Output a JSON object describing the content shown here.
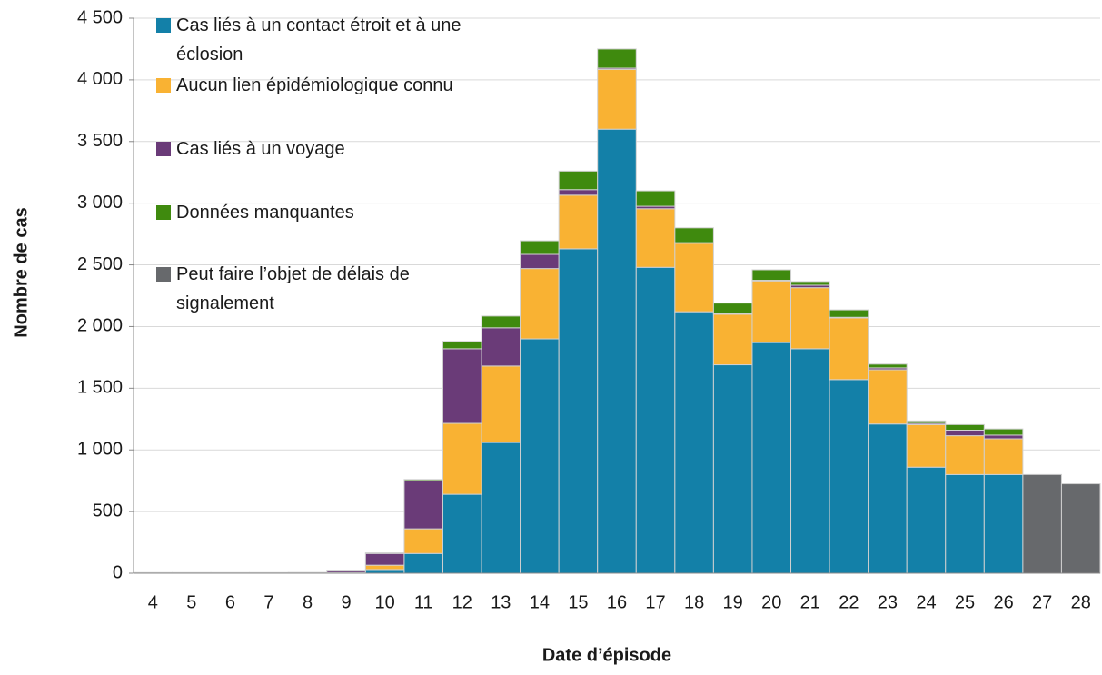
{
  "chart_data": {
    "type": "stacked_bar",
    "x_label": "Date d’épisode",
    "y_label": "Nombre de cas",
    "categories": [
      "4",
      "5",
      "6",
      "7",
      "8",
      "9",
      "10",
      "11",
      "12",
      "13",
      "14",
      "15",
      "16",
      "17",
      "18",
      "19",
      "20",
      "21",
      "22",
      "23",
      "24",
      "25",
      "26",
      "27",
      "28"
    ],
    "series": [
      {
        "name": "Cas liés à un contact étroit et à une éclosion",
        "color": "#1380a8",
        "values": [
          2,
          2,
          2,
          2,
          2,
          2,
          30,
          160,
          640,
          1060,
          1900,
          2630,
          3600,
          2480,
          2120,
          1690,
          1870,
          1820,
          1570,
          1210,
          860,
          800,
          800,
          0,
          0
        ]
      },
      {
        "name": "Aucun lien épidémiologique connu",
        "color": "#f9b233",
        "values": [
          1,
          1,
          1,
          1,
          1,
          3,
          35,
          200,
          575,
          620,
          570,
          435,
          485,
          475,
          555,
          410,
          500,
          495,
          500,
          440,
          345,
          315,
          290,
          0,
          0
        ]
      },
      {
        "name": "Cas liés à un voyage",
        "color": "#6a3b78",
        "values": [
          2,
          2,
          2,
          2,
          3,
          20,
          95,
          390,
          605,
          310,
          115,
          45,
          10,
          20,
          5,
          5,
          5,
          20,
          5,
          15,
          10,
          45,
          30,
          0,
          0
        ]
      },
      {
        "name": "Données manquantes",
        "color": "#3f8a0e",
        "values": [
          0,
          0,
          0,
          0,
          0,
          0,
          5,
          10,
          60,
          95,
          110,
          150,
          155,
          125,
          120,
          85,
          85,
          30,
          60,
          30,
          20,
          45,
          50,
          0,
          0
        ]
      },
      {
        "name": "Peut faire l’objet de délais de signalement",
        "color": "#67696c",
        "values": [
          0,
          0,
          0,
          0,
          0,
          0,
          0,
          0,
          0,
          0,
          0,
          0,
          0,
          0,
          0,
          0,
          0,
          0,
          0,
          0,
          0,
          0,
          0,
          800,
          725
        ]
      }
    ],
    "ylim": [
      0,
      4500
    ],
    "yticks": [
      0,
      500,
      {
        "value": 1000,
        "label": "1 000"
      },
      {
        "value": 1500,
        "label": "1 500"
      },
      {
        "value": 2000,
        "label": "2 000"
      },
      {
        "value": 2500,
        "label": "2 500"
      },
      {
        "value": 3000,
        "label": "3 000"
      },
      {
        "value": 3500,
        "label": "3 500"
      },
      {
        "value": 4000,
        "label": "4 000"
      },
      {
        "value": 4500,
        "label": "4 500"
      }
    ],
    "grid": true,
    "legend": "upper left"
  }
}
